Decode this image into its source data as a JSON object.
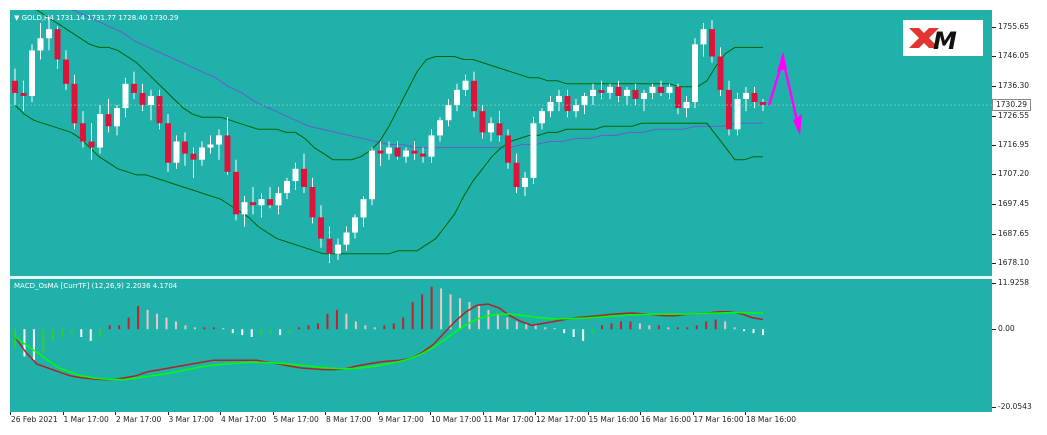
{
  "chart_header": {
    "symbol_label": "▼ GOLD,H4  1731.14 1731.77 1728.40 1730.29"
  },
  "macd_header": {
    "label": "MACD_OsMA [CurrTF] (12,26,9) 2.2036 4.1704"
  },
  "logo": {
    "text": "XM",
    "colors": {
      "x": "#e3342f",
      "m": "#111111"
    }
  },
  "price_axis": {
    "ticks": [
      "1755.65",
      "1746.05",
      "1736.30",
      "1726.55",
      "1716.95",
      "1707.20",
      "1697.45",
      "1687.65",
      "1678.10"
    ],
    "current_price": "1730.29"
  },
  "macd_axis": {
    "ticks": [
      "11.9258",
      "0.00",
      "-20.0543"
    ]
  },
  "time_axis": {
    "labels": [
      "26 Feb 2021",
      "1 Mar 17:00",
      "2 Mar 17:00",
      "3 Mar 17:00",
      "4 Mar 17:00",
      "5 Mar 17:00",
      "8 Mar 17:00",
      "9 Mar 17:00",
      "10 Mar 17:00",
      "11 Mar 17:00",
      "12 Mar 17:00",
      "15 Mar 16:00",
      "16 Mar 16:00",
      "17 Mar 16:00",
      "18 Mar 16:00"
    ]
  },
  "colors": {
    "background": "#20b2aa",
    "bull_candle": "#ffffff",
    "bear_candle": "#dc143c",
    "bollinger": "#006400",
    "moving_average": "#6a5acd",
    "macd_line": "#b22222",
    "signal_line": "#00ff00",
    "forecast_arrow": "#ff00ff"
  },
  "chart_data": {
    "type": "candlestick",
    "symbol": "GOLD",
    "timeframe": "H4",
    "ylim": [
      1675,
      1760
    ],
    "macd_ylim": [
      -20.0543,
      11.9258
    ],
    "candles": [
      [
        1738,
        1742,
        1730,
        1734
      ],
      [
        1734,
        1738,
        1728,
        1733
      ],
      [
        1733,
        1750,
        1731,
        1748
      ],
      [
        1748,
        1757,
        1745,
        1752
      ],
      [
        1752,
        1759,
        1748,
        1755
      ],
      [
        1755,
        1756,
        1742,
        1745
      ],
      [
        1745,
        1748,
        1735,
        1737
      ],
      [
        1737,
        1740,
        1722,
        1724
      ],
      [
        1724,
        1728,
        1716,
        1718
      ],
      [
        1718,
        1724,
        1712,
        1716
      ],
      [
        1716,
        1730,
        1714,
        1727
      ],
      [
        1727,
        1732,
        1721,
        1723
      ],
      [
        1723,
        1730,
        1720,
        1729
      ],
      [
        1729,
        1739,
        1726,
        1737
      ],
      [
        1737,
        1741,
        1732,
        1734
      ],
      [
        1734,
        1737,
        1728,
        1730
      ],
      [
        1730,
        1735,
        1725,
        1733
      ],
      [
        1733,
        1735,
        1722,
        1724
      ],
      [
        1724,
        1727,
        1708,
        1711
      ],
      [
        1711,
        1720,
        1709,
        1718
      ],
      [
        1718,
        1721,
        1710,
        1714
      ],
      [
        1714,
        1716,
        1706,
        1712
      ],
      [
        1712,
        1718,
        1710,
        1716
      ],
      [
        1716,
        1720,
        1714,
        1717
      ],
      [
        1717,
        1722,
        1712,
        1720
      ],
      [
        1720,
        1726,
        1707,
        1708
      ],
      [
        1708,
        1712,
        1692,
        1694
      ],
      [
        1694,
        1700,
        1690,
        1698
      ],
      [
        1698,
        1703,
        1694,
        1697
      ],
      [
        1697,
        1701,
        1693,
        1699
      ],
      [
        1699,
        1703,
        1696,
        1697
      ],
      [
        1697,
        1703,
        1694,
        1701
      ],
      [
        1701,
        1706,
        1699,
        1705
      ],
      [
        1705,
        1711,
        1702,
        1709
      ],
      [
        1709,
        1714,
        1701,
        1703
      ],
      [
        1703,
        1706,
        1691,
        1693
      ],
      [
        1693,
        1697,
        1683,
        1686
      ],
      [
        1686,
        1690,
        1678,
        1681
      ],
      [
        1681,
        1686,
        1679,
        1684
      ],
      [
        1684,
        1690,
        1682,
        1688
      ],
      [
        1688,
        1694,
        1686,
        1693
      ],
      [
        1693,
        1700,
        1690,
        1699
      ],
      [
        1699,
        1716,
        1697,
        1715
      ],
      [
        1715,
        1718,
        1710,
        1714
      ],
      [
        1714,
        1718,
        1712,
        1716
      ],
      [
        1716,
        1718,
        1712,
        1713
      ],
      [
        1713,
        1716,
        1711,
        1715
      ],
      [
        1715,
        1718,
        1712,
        1714
      ],
      [
        1714,
        1716,
        1711,
        1713
      ],
      [
        1713,
        1722,
        1711,
        1720
      ],
      [
        1720,
        1726,
        1718,
        1725
      ],
      [
        1725,
        1732,
        1723,
        1730
      ],
      [
        1730,
        1737,
        1728,
        1735
      ],
      [
        1735,
        1740,
        1733,
        1738
      ],
      [
        1738,
        1741,
        1726,
        1728
      ],
      [
        1728,
        1730,
        1719,
        1721
      ],
      [
        1721,
        1726,
        1718,
        1724
      ],
      [
        1724,
        1728,
        1718,
        1720
      ],
      [
        1720,
        1722,
        1709,
        1711
      ],
      [
        1711,
        1714,
        1701,
        1703
      ],
      [
        1703,
        1708,
        1700,
        1706
      ],
      [
        1706,
        1726,
        1704,
        1724
      ],
      [
        1724,
        1729,
        1722,
        1728
      ],
      [
        1728,
        1733,
        1726,
        1731
      ],
      [
        1731,
        1735,
        1728,
        1733
      ],
      [
        1733,
        1735,
        1726,
        1728
      ],
      [
        1728,
        1732,
        1726,
        1730
      ],
      [
        1730,
        1734,
        1727,
        1733
      ],
      [
        1733,
        1737,
        1730,
        1735
      ],
      [
        1735,
        1738,
        1732,
        1734
      ],
      [
        1734,
        1737,
        1732,
        1736
      ],
      [
        1736,
        1738,
        1731,
        1733
      ],
      [
        1733,
        1736,
        1730,
        1735
      ],
      [
        1735,
        1737,
        1730,
        1732
      ],
      [
        1732,
        1735,
        1728,
        1734
      ],
      [
        1734,
        1737,
        1732,
        1736
      ],
      [
        1736,
        1738,
        1733,
        1734
      ],
      [
        1734,
        1737,
        1732,
        1736
      ],
      [
        1736,
        1737,
        1727,
        1729
      ],
      [
        1729,
        1733,
        1726,
        1731
      ],
      [
        1731,
        1752,
        1729,
        1750
      ],
      [
        1750,
        1757,
        1746,
        1755
      ],
      [
        1755,
        1758,
        1744,
        1746
      ],
      [
        1746,
        1749,
        1733,
        1735
      ],
      [
        1735,
        1738,
        1720,
        1722
      ],
      [
        1722,
        1734,
        1720,
        1732
      ],
      [
        1732,
        1736,
        1728,
        1734
      ],
      [
        1734,
        1736,
        1729,
        1731
      ],
      [
        1731,
        1732,
        1728,
        1730
      ]
    ],
    "bollinger_upper": [
      1765,
      1764,
      1762,
      1760,
      1758,
      1756,
      1754,
      1752,
      1750,
      1749,
      1749,
      1748,
      1746,
      1744,
      1741,
      1738,
      1735,
      1732,
      1729,
      1727,
      1726,
      1726,
      1726,
      1725,
      1724,
      1723,
      1722,
      1722,
      1722,
      1721,
      1721,
      1719,
      1716,
      1714,
      1712,
      1712,
      1712,
      1713,
      1715,
      1718,
      1723,
      1729,
      1735,
      1741,
      1745,
      1746,
      1746,
      1746,
      1745,
      1745,
      1744,
      1743,
      1742,
      1741,
      1740,
      1739,
      1739,
      1738,
      1738,
      1737,
      1737,
      1737,
      1737,
      1737,
      1737,
      1737,
      1737,
      1737,
      1737,
      1737,
      1737,
      1736,
      1736,
      1736,
      1738,
      1743,
      1747,
      1749,
      1749,
      1749,
      1749
    ],
    "bollinger_lower": [
      1730,
      1727,
      1725,
      1724,
      1723,
      1722,
      1721,
      1719,
      1716,
      1713,
      1711,
      1709,
      1708,
      1707,
      1707,
      1706,
      1705,
      1704,
      1703,
      1702,
      1701,
      1700,
      1699,
      1697,
      1695,
      1693,
      1690,
      1688,
      1686,
      1685,
      1684,
      1683,
      1682,
      1681,
      1681,
      1681,
      1681,
      1681,
      1681,
      1681,
      1681,
      1682,
      1682,
      1682,
      1684,
      1686,
      1690,
      1694,
      1700,
      1705,
      1709,
      1713,
      1716,
      1718,
      1719,
      1720,
      1720,
      1721,
      1721,
      1722,
      1722,
      1722,
      1722,
      1723,
      1723,
      1723,
      1723,
      1724,
      1724,
      1724,
      1724,
      1724,
      1724,
      1724,
      1724,
      1720,
      1716,
      1712,
      1712,
      1713,
      1713
    ],
    "moving_average": [
      1769,
      1767,
      1766,
      1764,
      1762,
      1760,
      1758,
      1756,
      1754,
      1751,
      1749,
      1747,
      1745,
      1743,
      1741,
      1739,
      1736,
      1734,
      1731,
      1729,
      1727,
      1725,
      1723,
      1722,
      1721,
      1720,
      1719,
      1718,
      1717,
      1717,
      1716,
      1716,
      1716,
      1716,
      1716,
      1716,
      1716,
      1716,
      1717,
      1717,
      1718,
      1718,
      1719,
      1719,
      1720,
      1720,
      1721,
      1721,
      1722,
      1722,
      1722,
      1723,
      1723,
      1723,
      1724,
      1724,
      1724
    ],
    "macd_histogram": [
      -5,
      -7,
      -8,
      -6,
      -3,
      -2,
      -1,
      -2,
      -3,
      -2,
      1,
      1,
      3,
      6,
      5,
      4,
      3,
      2,
      1,
      0.5,
      0.5,
      0.5,
      0.3,
      -1,
      -1.5,
      -2,
      -1.5,
      -1,
      -1.5,
      -1,
      0.5,
      1,
      1.5,
      4,
      5,
      4,
      2,
      1,
      0.5,
      1,
      1.5,
      3,
      7,
      9,
      11,
      10.5,
      9,
      8,
      7,
      6,
      5,
      4,
      3,
      2,
      1.5,
      1,
      0.5,
      0.3,
      -1,
      -2,
      -3,
      -1,
      1,
      1.5,
      2,
      2,
      1.5,
      1,
      1,
      0.5,
      0.5,
      0.5,
      1,
      2,
      2.5,
      2,
      0.5,
      -0.5,
      -1,
      -1.5
    ],
    "macd_line": [
      -2,
      -6,
      -9,
      -10,
      -11,
      -12,
      -12.5,
      -12.8,
      -13,
      -13,
      -12.5,
      -12,
      -11,
      -10.5,
      -10,
      -9.5,
      -9,
      -8.5,
      -8,
      -8,
      -8,
      -8,
      -8,
      -8.5,
      -9,
      -9.5,
      -10,
      -10.2,
      -10.4,
      -10.4,
      -10.2,
      -9.5,
      -9,
      -8.5,
      -8.2,
      -8,
      -7.5,
      -6,
      -4,
      -1,
      2,
      4.5,
      6.2,
      6.5,
      5.5,
      3.5,
      2,
      1,
      1.5,
      2,
      2.5,
      3,
      3.2,
      3.5,
      3.8,
      4,
      4.2,
      4,
      3.8,
      3.5,
      3.5,
      3.8,
      4,
      4.2,
      4.5,
      4.5,
      4,
      3,
      2.5
    ],
    "signal_line": [
      -2,
      -4,
      -6,
      -8,
      -10,
      -11,
      -12,
      -12.5,
      -12.8,
      -13,
      -13,
      -12.6,
      -12.2,
      -11.8,
      -11.3,
      -10.8,
      -10.2,
      -9.7,
      -9.3,
      -9,
      -8.8,
      -8.6,
      -8.5,
      -8.6,
      -8.8,
      -9,
      -9.3,
      -9.6,
      -9.9,
      -10.1,
      -10.2,
      -10.1,
      -9.8,
      -9.4,
      -8.9,
      -8.3,
      -7.5,
      -6.3,
      -4.7,
      -2.8,
      -0.7,
      1.2,
      2.6,
      3.5,
      3.9,
      3.9,
      3.6,
      3.2,
      2.9,
      2.7,
      2.7,
      2.8,
      2.9,
      3.1,
      3.3,
      3.5,
      3.7,
      3.8,
      3.9,
      3.9,
      3.9,
      3.9,
      4,
      4.1,
      4.2,
      4.3,
      4.3,
      4.2,
      4.1
    ]
  }
}
